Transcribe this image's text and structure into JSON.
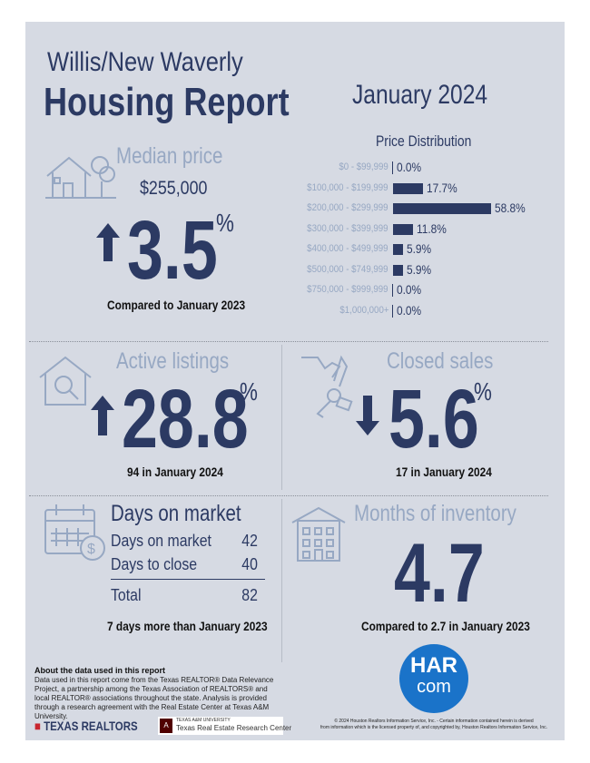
{
  "header": {
    "area": "Willis/New Waverly",
    "title": "Housing Report",
    "date": "January 2024"
  },
  "median_price": {
    "title": "Median price",
    "value": "$255,000",
    "change": "3.5",
    "percent_sign": "%",
    "direction": "up",
    "caption": "Compared to January 2023"
  },
  "price_distribution": {
    "title": "Price Distribution",
    "rows": [
      {
        "label": "$0 - $99,999",
        "value": "0.0%",
        "pct": 0.0
      },
      {
        "label": "$100,000 - $199,999",
        "value": "17.7%",
        "pct": 17.7
      },
      {
        "label": "$200,000 - $299,999",
        "value": "58.8%",
        "pct": 58.8
      },
      {
        "label": "$300,000 - $399,999",
        "value": "11.8%",
        "pct": 11.8
      },
      {
        "label": "$400,000 - $499,999",
        "value": "5.9%",
        "pct": 5.9
      },
      {
        "label": "$500,000 - $749,999",
        "value": "5.9%",
        "pct": 5.9
      },
      {
        "label": "$750,000 - $999,999",
        "value": "0.0%",
        "pct": 0.0
      },
      {
        "label": "$1,000,000+",
        "value": "0.0%",
        "pct": 0.0
      }
    ]
  },
  "active_listings": {
    "title": "Active listings",
    "change": "28.8",
    "percent_sign": "%",
    "direction": "up",
    "caption": "94 in January 2024"
  },
  "closed_sales": {
    "title": "Closed sales",
    "change": "5.6",
    "percent_sign": "%",
    "direction": "down",
    "caption": "17 in January 2024"
  },
  "days_on_market": {
    "title": "Days on market",
    "rows": [
      {
        "label": "Days on market",
        "value": "42"
      },
      {
        "label": "Days to close",
        "value": "40"
      }
    ],
    "total_label": "Total",
    "total_value": "82",
    "caption": "7 days more than January 2023"
  },
  "months_inventory": {
    "title": "Months of inventory",
    "value": "4.7",
    "caption": "Compared to 2.7 in January 2023"
  },
  "about": {
    "title": "About the data used in this report",
    "text": "Data used in this report come from the Texas REALTOR® Data Relevance Project, a partnership among the Texas Association of REALTORS® and local REALTOR® associations throughout the state. Analysis is provided through a research agreement with the Real Estate Center at Texas A&M University."
  },
  "logos": {
    "texas_realtors": "TEXAS REALTORS",
    "tamu_small": "TEXAS A&M UNIVERSITY",
    "tamu_center": "Texas Real Estate Research Center",
    "har_top": "HAR",
    "har_bottom": "com"
  },
  "copyright": {
    "line1": "© 2024 Houston Realtors Information Service, Inc. - Certain information contained herein is derived",
    "line2": "from information which is the licensed property of, and copyrighted by, Houston Realtors Information Service, Inc."
  },
  "colors": {
    "navy": "#2c3a63",
    "light": "#97a8c3",
    "background": "#d6dae3",
    "har_blue": "#1a73c9"
  }
}
